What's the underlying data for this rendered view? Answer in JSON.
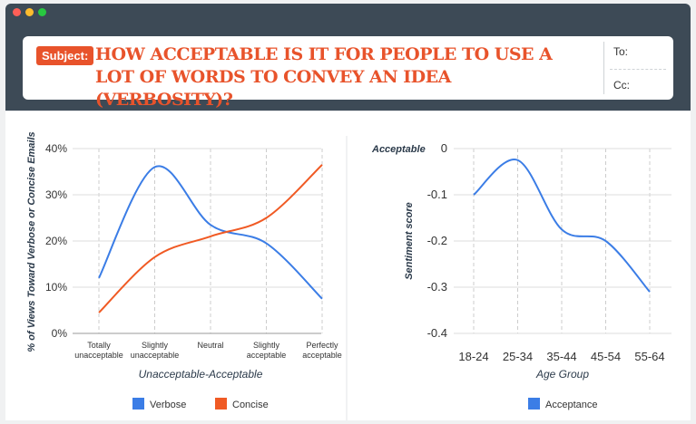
{
  "window": {
    "dots": [
      {
        "name": "close-dot",
        "color": "#ff5f57"
      },
      {
        "name": "minimize-dot",
        "color": "#febc2e"
      },
      {
        "name": "maximize-dot",
        "color": "#28c840"
      }
    ]
  },
  "header": {
    "subject_label": "Subject:",
    "title": "HOW ACCEPTABLE IS IT FOR PEOPLE TO USE A LOT OF WORDS TO CONVEY AN IDEA (VERBOSITY)?",
    "to_label": "To:",
    "cc_label": "Cc:"
  },
  "colors": {
    "accent": "#e8532b",
    "verbose": "#3b7de6",
    "concise": "#f05a24",
    "acceptance": "#3b7de6"
  },
  "chart_data": [
    {
      "type": "line",
      "categories": [
        "Totally unacceptable",
        "Slightly unacceptable",
        "Neutral",
        "Slightly acceptable",
        "Perfectly acceptable"
      ],
      "series": [
        {
          "name": "Verbose",
          "values": [
            12,
            36,
            23.5,
            19.5,
            7.5
          ]
        },
        {
          "name": "Concise",
          "values": [
            4.5,
            16.5,
            21,
            25,
            36.5
          ]
        }
      ],
      "xlabel": "Unacceptable-Acceptable",
      "ylabel": "% of Views Toward Verbose or Concise Emails",
      "ylim": [
        0,
        40
      ],
      "yticks": [
        "0%",
        "10%",
        "20%",
        "30%",
        "40%"
      ],
      "grid": "dashed vertical",
      "legend": "bottom"
    },
    {
      "type": "line",
      "categories": [
        "18-24",
        "25-34",
        "35-44",
        "45-54",
        "55-64"
      ],
      "series": [
        {
          "name": "Acceptance",
          "values": [
            -0.1,
            -0.025,
            -0.175,
            -0.2,
            -0.31
          ]
        }
      ],
      "xlabel": "Age Group",
      "ylabel": "Sentiment score",
      "annotation": "Acceptable",
      "ylim": [
        -0.4,
        0
      ],
      "yticks": [
        "-0.4",
        "-0.3",
        "-0.2",
        "-0.1",
        "0"
      ],
      "grid": "dashed vertical",
      "legend": "bottom"
    }
  ]
}
